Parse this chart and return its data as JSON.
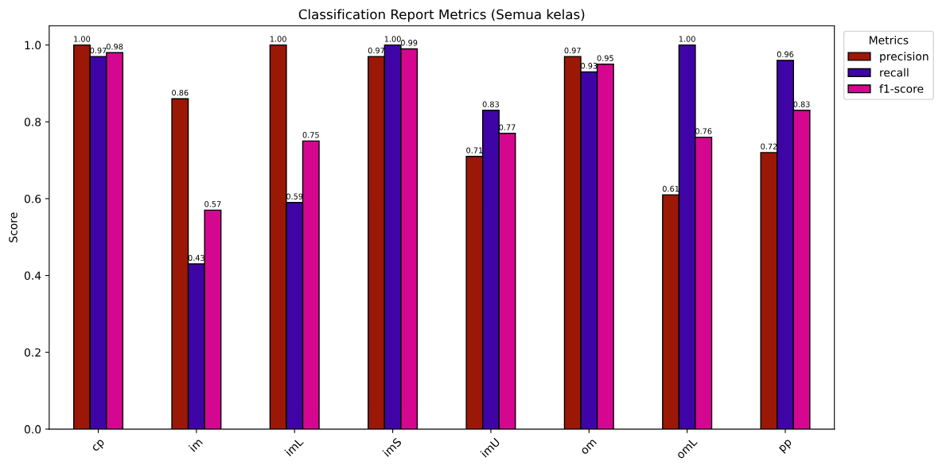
{
  "chart_data": {
    "type": "bar",
    "title": "Classification Report Metrics (Semua kelas)",
    "ylabel": "Score",
    "categories": [
      "cp",
      "im",
      "imL",
      "imS",
      "imU",
      "om",
      "omL",
      "pp"
    ],
    "series": [
      {
        "name": "precision",
        "color": "#9b1706",
        "values": [
          1.0,
          0.86,
          1.0,
          0.97,
          0.71,
          0.97,
          0.61,
          0.72
        ],
        "value_labels": [
          "1.00",
          "0.86",
          "1.00",
          "0.97",
          "0.71",
          "0.97",
          "0.61",
          "0.72"
        ]
      },
      {
        "name": "recall",
        "color": "#3f04a6",
        "values": [
          0.97,
          0.43,
          0.59,
          1.0,
          0.83,
          0.93,
          1.0,
          0.96
        ],
        "value_labels": [
          "0.97",
          "0.43",
          "0.59",
          "1.00",
          "0.83",
          "0.93",
          "1.00",
          "0.96"
        ]
      },
      {
        "name": "f1-score",
        "color": "#d5068f",
        "values": [
          0.98,
          0.57,
          0.75,
          0.99,
          0.77,
          0.95,
          0.76,
          0.83
        ],
        "value_labels": [
          "0.98",
          "0.57",
          "0.75",
          "0.99",
          "0.77",
          "0.95",
          "0.76",
          "0.83"
        ]
      }
    ],
    "ylim": [
      0,
      1.05
    ],
    "yticks": [
      {
        "value": 0,
        "label": "0.0"
      },
      {
        "value": 0.2,
        "label": "0.2"
      },
      {
        "value": 0.4,
        "label": "0.4"
      },
      {
        "value": 0.6,
        "label": "0.6"
      },
      {
        "value": 0.8,
        "label": "0.8"
      },
      {
        "value": 1.0,
        "label": "1.0"
      }
    ],
    "legend_title": "Metrics",
    "legend": "top right",
    "grid": false
  }
}
